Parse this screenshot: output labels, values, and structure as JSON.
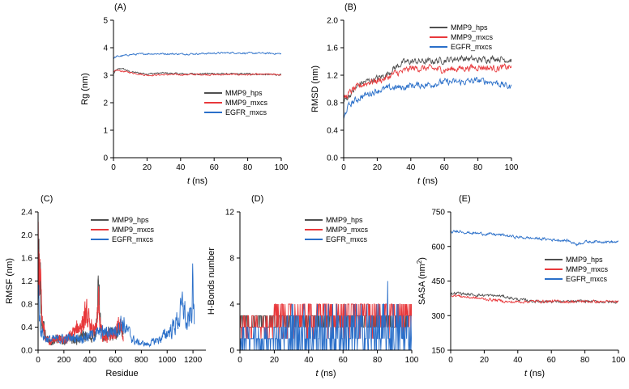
{
  "series_colors": {
    "MMP9_hps": "#505050",
    "MMP9_mxcs": "#e8383b",
    "EGFR_mxcs": "#2a6fc9"
  },
  "chart_data": [
    {
      "type": "line",
      "panel": "(A)",
      "xlabel_prefix": "t",
      "xlabel": "(ns)",
      "ylabel": "Rg (nm)",
      "ylabel_sup": "",
      "ylabel_end": "",
      "xlim": [
        0,
        100
      ],
      "ylim": [
        0,
        5
      ],
      "xticks": [
        0,
        20,
        40,
        60,
        80,
        100
      ],
      "yticks": [
        0,
        1,
        2,
        3,
        4,
        5
      ],
      "legend": "center-right",
      "series": [
        {
          "name": "MMP9_hps",
          "key": "MMP9_hps",
          "x": [
            0,
            2,
            5,
            10,
            20,
            30,
            40,
            50,
            60,
            70,
            80,
            90,
            100
          ],
          "y": [
            3.05,
            3.2,
            3.25,
            3.12,
            3.05,
            3.08,
            3.05,
            3.05,
            3.06,
            3.04,
            3.05,
            3.03,
            3.02
          ]
        },
        {
          "name": "MMP9_mxcs",
          "key": "MMP9_mxcs",
          "x": [
            0,
            2,
            5,
            10,
            20,
            30,
            40,
            50,
            60,
            70,
            80,
            90,
            100
          ],
          "y": [
            3.1,
            3.18,
            3.15,
            3.1,
            3.0,
            3.02,
            3.02,
            3.03,
            3.02,
            3.03,
            3.02,
            3.03,
            3.02
          ]
        },
        {
          "name": "EGFR_mxcs",
          "key": "EGFR_mxcs",
          "x": [
            0,
            2,
            5,
            10,
            20,
            30,
            40,
            50,
            60,
            70,
            80,
            90,
            100
          ],
          "y": [
            3.62,
            3.68,
            3.7,
            3.75,
            3.78,
            3.78,
            3.77,
            3.78,
            3.8,
            3.82,
            3.8,
            3.8,
            3.78
          ]
        }
      ]
    },
    {
      "type": "line",
      "panel": "(B)",
      "xlabel_prefix": "t",
      "xlabel": "(ns)",
      "ylabel": "RMSD (nm)",
      "ylabel_sup": "",
      "ylabel_end": "",
      "xlim": [
        0,
        100
      ],
      "ylim": [
        0,
        2.0
      ],
      "xticks": [
        0,
        20,
        40,
        60,
        80,
        100
      ],
      "yticks": [
        0.0,
        0.4,
        0.8,
        1.2,
        1.6,
        2.0
      ],
      "ytick_labels": [
        "0.0",
        "0.4",
        "0.8",
        "1.2",
        "1.6",
        "2.0"
      ],
      "legend": "top-right",
      "series": [
        {
          "name": "MMP9_hps",
          "key": "MMP9_hps",
          "x": [
            0,
            5,
            10,
            15,
            20,
            25,
            30,
            35,
            40,
            50,
            60,
            70,
            80,
            90,
            100
          ],
          "y": [
            0.82,
            0.95,
            1.08,
            1.12,
            1.15,
            1.2,
            1.3,
            1.38,
            1.4,
            1.4,
            1.42,
            1.45,
            1.42,
            1.45,
            1.42
          ]
        },
        {
          "name": "MMP9_mxcs",
          "key": "MMP9_mxcs",
          "x": [
            0,
            5,
            10,
            15,
            20,
            25,
            30,
            35,
            40,
            50,
            60,
            70,
            80,
            90,
            100
          ],
          "y": [
            0.85,
            0.98,
            1.05,
            1.1,
            1.12,
            1.15,
            1.22,
            1.25,
            1.3,
            1.3,
            1.28,
            1.3,
            1.32,
            1.3,
            1.32
          ]
        },
        {
          "name": "EGFR_mxcs",
          "key": "EGFR_mxcs",
          "x": [
            0,
            2,
            5,
            10,
            15,
            20,
            25,
            30,
            35,
            40,
            50,
            60,
            70,
            80,
            90,
            100
          ],
          "y": [
            0.55,
            0.72,
            0.8,
            0.88,
            0.93,
            0.98,
            1.0,
            1.02,
            1.02,
            1.05,
            1.06,
            1.1,
            1.1,
            1.12,
            1.1,
            1.02
          ]
        }
      ]
    },
    {
      "type": "line",
      "panel": "(C)",
      "xlabel_prefix": "",
      "xlabel": "Residue",
      "ylabel": "RMSF (nm)",
      "ylabel_sup": "",
      "ylabel_end": "",
      "xlim": [
        0,
        1300
      ],
      "ylim": [
        0,
        2.4
      ],
      "xticks": [
        0,
        200,
        400,
        600,
        800,
        1000,
        1200
      ],
      "yticks": [
        0.0,
        0.4,
        0.8,
        1.2,
        1.6,
        2.0,
        2.4
      ],
      "ytick_labels": [
        "0.0",
        "0.4",
        "0.8",
        "1.2",
        "1.6",
        "2.0",
        "2.4"
      ],
      "legend": "top-center",
      "series": [
        {
          "name": "MMP9_hps",
          "key": "MMP9_hps",
          "x": [
            0,
            10,
            30,
            60,
            100,
            150,
            200,
            250,
            300,
            350,
            400,
            440,
            460,
            470,
            480,
            500,
            550,
            600,
            640,
            660
          ],
          "y": [
            1.9,
            1.5,
            0.5,
            0.2,
            0.15,
            0.2,
            0.15,
            0.2,
            0.18,
            0.25,
            0.2,
            0.3,
            0.6,
            1.35,
            0.5,
            0.2,
            0.3,
            0.25,
            0.4,
            0.2
          ]
        },
        {
          "name": "MMP9_mxcs",
          "key": "MMP9_mxcs",
          "x": [
            0,
            10,
            30,
            60,
            100,
            150,
            200,
            250,
            300,
            350,
            380,
            400,
            440,
            460,
            470,
            480,
            500,
            550,
            600,
            640,
            660
          ],
          "y": [
            1.85,
            1.4,
            0.45,
            0.2,
            0.15,
            0.2,
            0.15,
            0.25,
            0.35,
            0.5,
            0.6,
            0.4,
            0.3,
            0.5,
            0.9,
            0.45,
            0.2,
            0.3,
            0.3,
            0.45,
            0.2
          ]
        },
        {
          "name": "EGFR_mxcs",
          "key": "EGFR_mxcs",
          "x": [
            0,
            10,
            30,
            60,
            100,
            200,
            300,
            400,
            500,
            600,
            650,
            700,
            750,
            800,
            850,
            900,
            950,
            1000,
            1050,
            1100,
            1130,
            1150,
            1170,
            1190,
            1200,
            1210
          ],
          "y": [
            1.1,
            0.6,
            0.3,
            0.2,
            0.18,
            0.2,
            0.22,
            0.25,
            0.3,
            0.35,
            0.5,
            0.3,
            0.15,
            0.12,
            0.1,
            0.15,
            0.2,
            0.3,
            0.4,
            0.6,
            0.8,
            0.4,
            0.5,
            0.7,
            1.25,
            0.35
          ]
        }
      ]
    },
    {
      "type": "line",
      "panel": "(D)",
      "xlabel_prefix": "t",
      "xlabel": "(ns)",
      "ylabel": "H-Bonds number",
      "ylabel_sup": "",
      "ylabel_end": "",
      "xlim": [
        0,
        100
      ],
      "ylim": [
        0,
        12
      ],
      "xticks": [
        0,
        20,
        40,
        60,
        80,
        100
      ],
      "yticks": [
        0,
        4,
        8,
        12
      ],
      "legend": "top-right",
      "series": [
        {
          "name": "MMP9_hps",
          "key": "MMP9_hps",
          "x": [
            0,
            100
          ],
          "y": [
            2,
            3
          ]
        },
        {
          "name": "MMP9_mxcs",
          "key": "MMP9_mxcs",
          "x": [
            0,
            100
          ],
          "y": [
            1,
            4
          ]
        },
        {
          "name": "EGFR_mxcs",
          "key": "EGFR_mxcs",
          "x": [
            0,
            100
          ],
          "y": [
            0,
            4
          ]
        }
      ]
    },
    {
      "type": "line",
      "panel": "(E)",
      "xlabel_prefix": "t",
      "xlabel": "(ns)",
      "ylabel": "SASA (nm",
      "ylabel_sup": "2",
      "ylabel_end": ")",
      "xlim": [
        0,
        100
      ],
      "ylim": [
        150,
        750
      ],
      "xticks": [
        0,
        20,
        40,
        60,
        80,
        100
      ],
      "yticks": [
        150,
        300,
        450,
        600,
        750
      ],
      "legend": "center-right",
      "series": [
        {
          "name": "MMP9_hps",
          "key": "MMP9_hps",
          "x": [
            0,
            5,
            10,
            20,
            30,
            35,
            40,
            50,
            60,
            70,
            80,
            90,
            100
          ],
          "y": [
            395,
            398,
            392,
            388,
            385,
            378,
            370,
            362,
            362,
            360,
            362,
            360,
            358
          ]
        },
        {
          "name": "MMP9_mxcs",
          "key": "MMP9_mxcs",
          "x": [
            0,
            5,
            10,
            20,
            30,
            35,
            40,
            50,
            60,
            70,
            80,
            90,
            100
          ],
          "y": [
            390,
            385,
            380,
            372,
            365,
            358,
            360,
            362,
            362,
            360,
            362,
            360,
            360
          ]
        },
        {
          "name": "EGFR_mxcs",
          "key": "EGFR_mxcs",
          "x": [
            0,
            5,
            10,
            20,
            30,
            40,
            50,
            60,
            70,
            75,
            80,
            90,
            100
          ],
          "y": [
            660,
            668,
            660,
            655,
            650,
            640,
            635,
            630,
            625,
            610,
            620,
            622,
            618
          ]
        }
      ]
    }
  ]
}
